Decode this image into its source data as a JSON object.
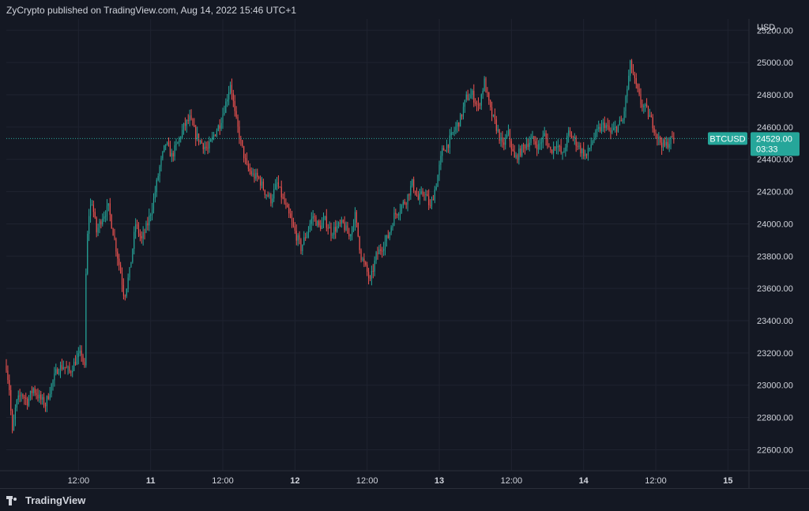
{
  "header": {
    "published_by": "ZyCrypto published on TradingView.com, Aug 14, 2022 15:46 UTC+1"
  },
  "footer": {
    "brand": "TradingView"
  },
  "colors": {
    "background": "#141823",
    "grid": "#1f2330",
    "up": "#26a69a",
    "down": "#ef5350",
    "axis_text": "#d1d4dc",
    "price_tag": "#26a69a"
  },
  "chart_data": {
    "type": "candlestick",
    "symbol": "BTCUSD",
    "currency": "USD",
    "last_price": 24529.0,
    "last_price_label": "24529.00",
    "countdown": "03:33",
    "ylim": [
      22470,
      25270
    ],
    "y_ticks": [
      22600,
      22800,
      23000,
      23200,
      23400,
      23600,
      23800,
      24000,
      24200,
      24400,
      24600,
      24800,
      25000,
      25200
    ],
    "y_tick_labels": [
      "22600.00",
      "22800.00",
      "23000.00",
      "23200.00",
      "23400.00",
      "23600.00",
      "23800.00",
      "24000.00",
      "24200.00",
      "24400.00",
      "24600.00",
      "24800.00",
      "25000.00",
      "25200.00"
    ],
    "x_ticks": [
      {
        "t": 12,
        "label": "12:00"
      },
      {
        "t": 24,
        "label": "11"
      },
      {
        "t": 36,
        "label": "12:00"
      },
      {
        "t": 48,
        "label": "12"
      },
      {
        "t": 60,
        "label": "12:00"
      },
      {
        "t": 72,
        "label": "13"
      },
      {
        "t": 84,
        "label": "12:00"
      },
      {
        "t": 96,
        "label": "14"
      },
      {
        "t": 108,
        "label": "12:00"
      },
      {
        "t": 120,
        "label": "15"
      }
    ],
    "xlim": [
      0,
      123.5
    ],
    "price_path": [
      [
        0,
        23120
      ],
      [
        0.5,
        22980
      ],
      [
        1,
        22700
      ],
      [
        1.6,
        22880
      ],
      [
        2.5,
        22950
      ],
      [
        3.5,
        22900
      ],
      [
        4.5,
        22980
      ],
      [
        5.5,
        22920
      ],
      [
        6.5,
        22880
      ],
      [
        7.5,
        23000
      ],
      [
        8.5,
        23100
      ],
      [
        9.5,
        23120
      ],
      [
        10.5,
        23080
      ],
      [
        11.5,
        23150
      ],
      [
        12.5,
        23200
      ],
      [
        13,
        23100
      ],
      [
        13.3,
        23800
      ],
      [
        13.7,
        24050
      ],
      [
        14.2,
        24150
      ],
      [
        15,
        23950
      ],
      [
        16,
        24050
      ],
      [
        17,
        24100
      ],
      [
        18,
        23900
      ],
      [
        19,
        23700
      ],
      [
        19.6,
        23550
      ],
      [
        20.5,
        23700
      ],
      [
        21.5,
        24000
      ],
      [
        22.5,
        23900
      ],
      [
        23.5,
        24000
      ],
      [
        24.5,
        24150
      ],
      [
        25.5,
        24350
      ],
      [
        26.5,
        24500
      ],
      [
        27.5,
        24420
      ],
      [
        28.5,
        24500
      ],
      [
        29.5,
        24600
      ],
      [
        30.5,
        24650
      ],
      [
        31.5,
        24550
      ],
      [
        32.5,
        24500
      ],
      [
        33.5,
        24460
      ],
      [
        34.5,
        24550
      ],
      [
        35.5,
        24620
      ],
      [
        36.5,
        24750
      ],
      [
        37.3,
        24880
      ],
      [
        38,
        24680
      ],
      [
        39,
        24500
      ],
      [
        40,
        24350
      ],
      [
        41,
        24300
      ],
      [
        42,
        24280
      ],
      [
        43,
        24200
      ],
      [
        44,
        24150
      ],
      [
        45,
        24250
      ],
      [
        46,
        24150
      ],
      [
        47,
        24050
      ],
      [
        48,
        23950
      ],
      [
        49,
        23850
      ],
      [
        50,
        23950
      ],
      [
        51,
        24050
      ],
      [
        52,
        23980
      ],
      [
        53,
        24020
      ],
      [
        54,
        23950
      ],
      [
        55,
        23980
      ],
      [
        56,
        24000
      ],
      [
        57,
        23920
      ],
      [
        58,
        24050
      ],
      [
        59,
        23800
      ],
      [
        60,
        23700
      ],
      [
        60.5,
        23640
      ],
      [
        61.5,
        23800
      ],
      [
        62.5,
        23860
      ],
      [
        63.5,
        23920
      ],
      [
        64.5,
        24050
      ],
      [
        65.5,
        24100
      ],
      [
        66.5,
        24150
      ],
      [
        67.5,
        24250
      ],
      [
        68.5,
        24150
      ],
      [
        69.5,
        24200
      ],
      [
        70.5,
        24100
      ],
      [
        71.5,
        24250
      ],
      [
        72.5,
        24450
      ],
      [
        73.5,
        24500
      ],
      [
        74.5,
        24580
      ],
      [
        75.5,
        24650
      ],
      [
        76.5,
        24780
      ],
      [
        77.5,
        24800
      ],
      [
        78.5,
        24720
      ],
      [
        79.5,
        24880
      ],
      [
        80.5,
        24700
      ],
      [
        81.5,
        24600
      ],
      [
        82.5,
        24480
      ],
      [
        83.5,
        24560
      ],
      [
        84.5,
        24400
      ],
      [
        85.5,
        24450
      ],
      [
        86.5,
        24500
      ],
      [
        87.5,
        24520
      ],
      [
        88.5,
        24480
      ],
      [
        89.5,
        24550
      ],
      [
        90.5,
        24450
      ],
      [
        91.5,
        24500
      ],
      [
        92.5,
        24420
      ],
      [
        93.5,
        24560
      ],
      [
        94.5,
        24520
      ],
      [
        95.5,
        24460
      ],
      [
        96.5,
        24420
      ],
      [
        97.5,
        24520
      ],
      [
        98.5,
        24580
      ],
      [
        99.5,
        24620
      ],
      [
        100.5,
        24560
      ],
      [
        101.5,
        24600
      ],
      [
        102.5,
        24640
      ],
      [
        103.3,
        24850
      ],
      [
        103.8,
        25000
      ],
      [
        104.5,
        24880
      ],
      [
        105.5,
        24750
      ],
      [
        106.5,
        24700
      ],
      [
        107.5,
        24620
      ],
      [
        108.5,
        24520
      ],
      [
        109.5,
        24480
      ],
      [
        110.5,
        24520
      ],
      [
        111,
        24529
      ]
    ]
  }
}
